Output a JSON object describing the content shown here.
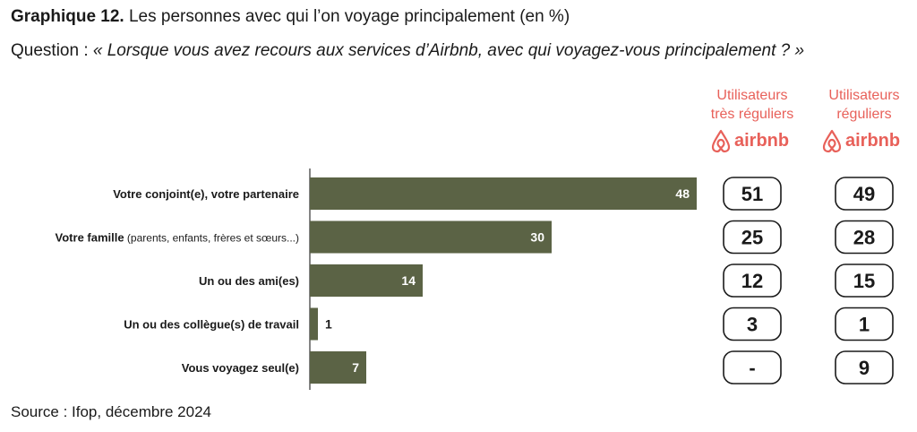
{
  "header": {
    "title_bold": "Graphique 12.",
    "title_rest": " Les personnes avec qui l’on voyage principalement (en %)",
    "question_prefix": "Question : ",
    "question_text": "« Lorsque vous avez recours aux services d’Airbnb, avec qui voyagez-vous principalement ? »"
  },
  "columns": {
    "col1_line1": "Utilisateurs",
    "col1_line2": "très réguliers",
    "col2_line1": "Utilisateurs",
    "col2_line2": "réguliers",
    "brand": "airbnb"
  },
  "source": "Source : Ifop, décembre 2024",
  "colors": {
    "bar": "#5b6345",
    "accent": "#e8615a",
    "pill_border": "#1a1a1a"
  },
  "chart_data": {
    "type": "bar",
    "orientation": "horizontal",
    "categories": [
      {
        "label": "Votre conjoint(e), votre partenaire",
        "sub": ""
      },
      {
        "label": "Votre famille",
        "sub": " (parents, enfants, frères et sœurs...)"
      },
      {
        "label": "Un ou des ami(es)",
        "sub": ""
      },
      {
        "label": "Un ou des collègue(s) de travail",
        "sub": ""
      },
      {
        "label": "Vous voyagez seul(e)",
        "sub": ""
      }
    ],
    "values": [
      48,
      30,
      14,
      1,
      7
    ],
    "xlim": [
      0,
      48
    ],
    "table": {
      "very_regular_users": [
        "51",
        "25",
        "12",
        "3",
        "-"
      ],
      "regular_users": [
        "49",
        "28",
        "15",
        "1",
        "9"
      ]
    }
  }
}
